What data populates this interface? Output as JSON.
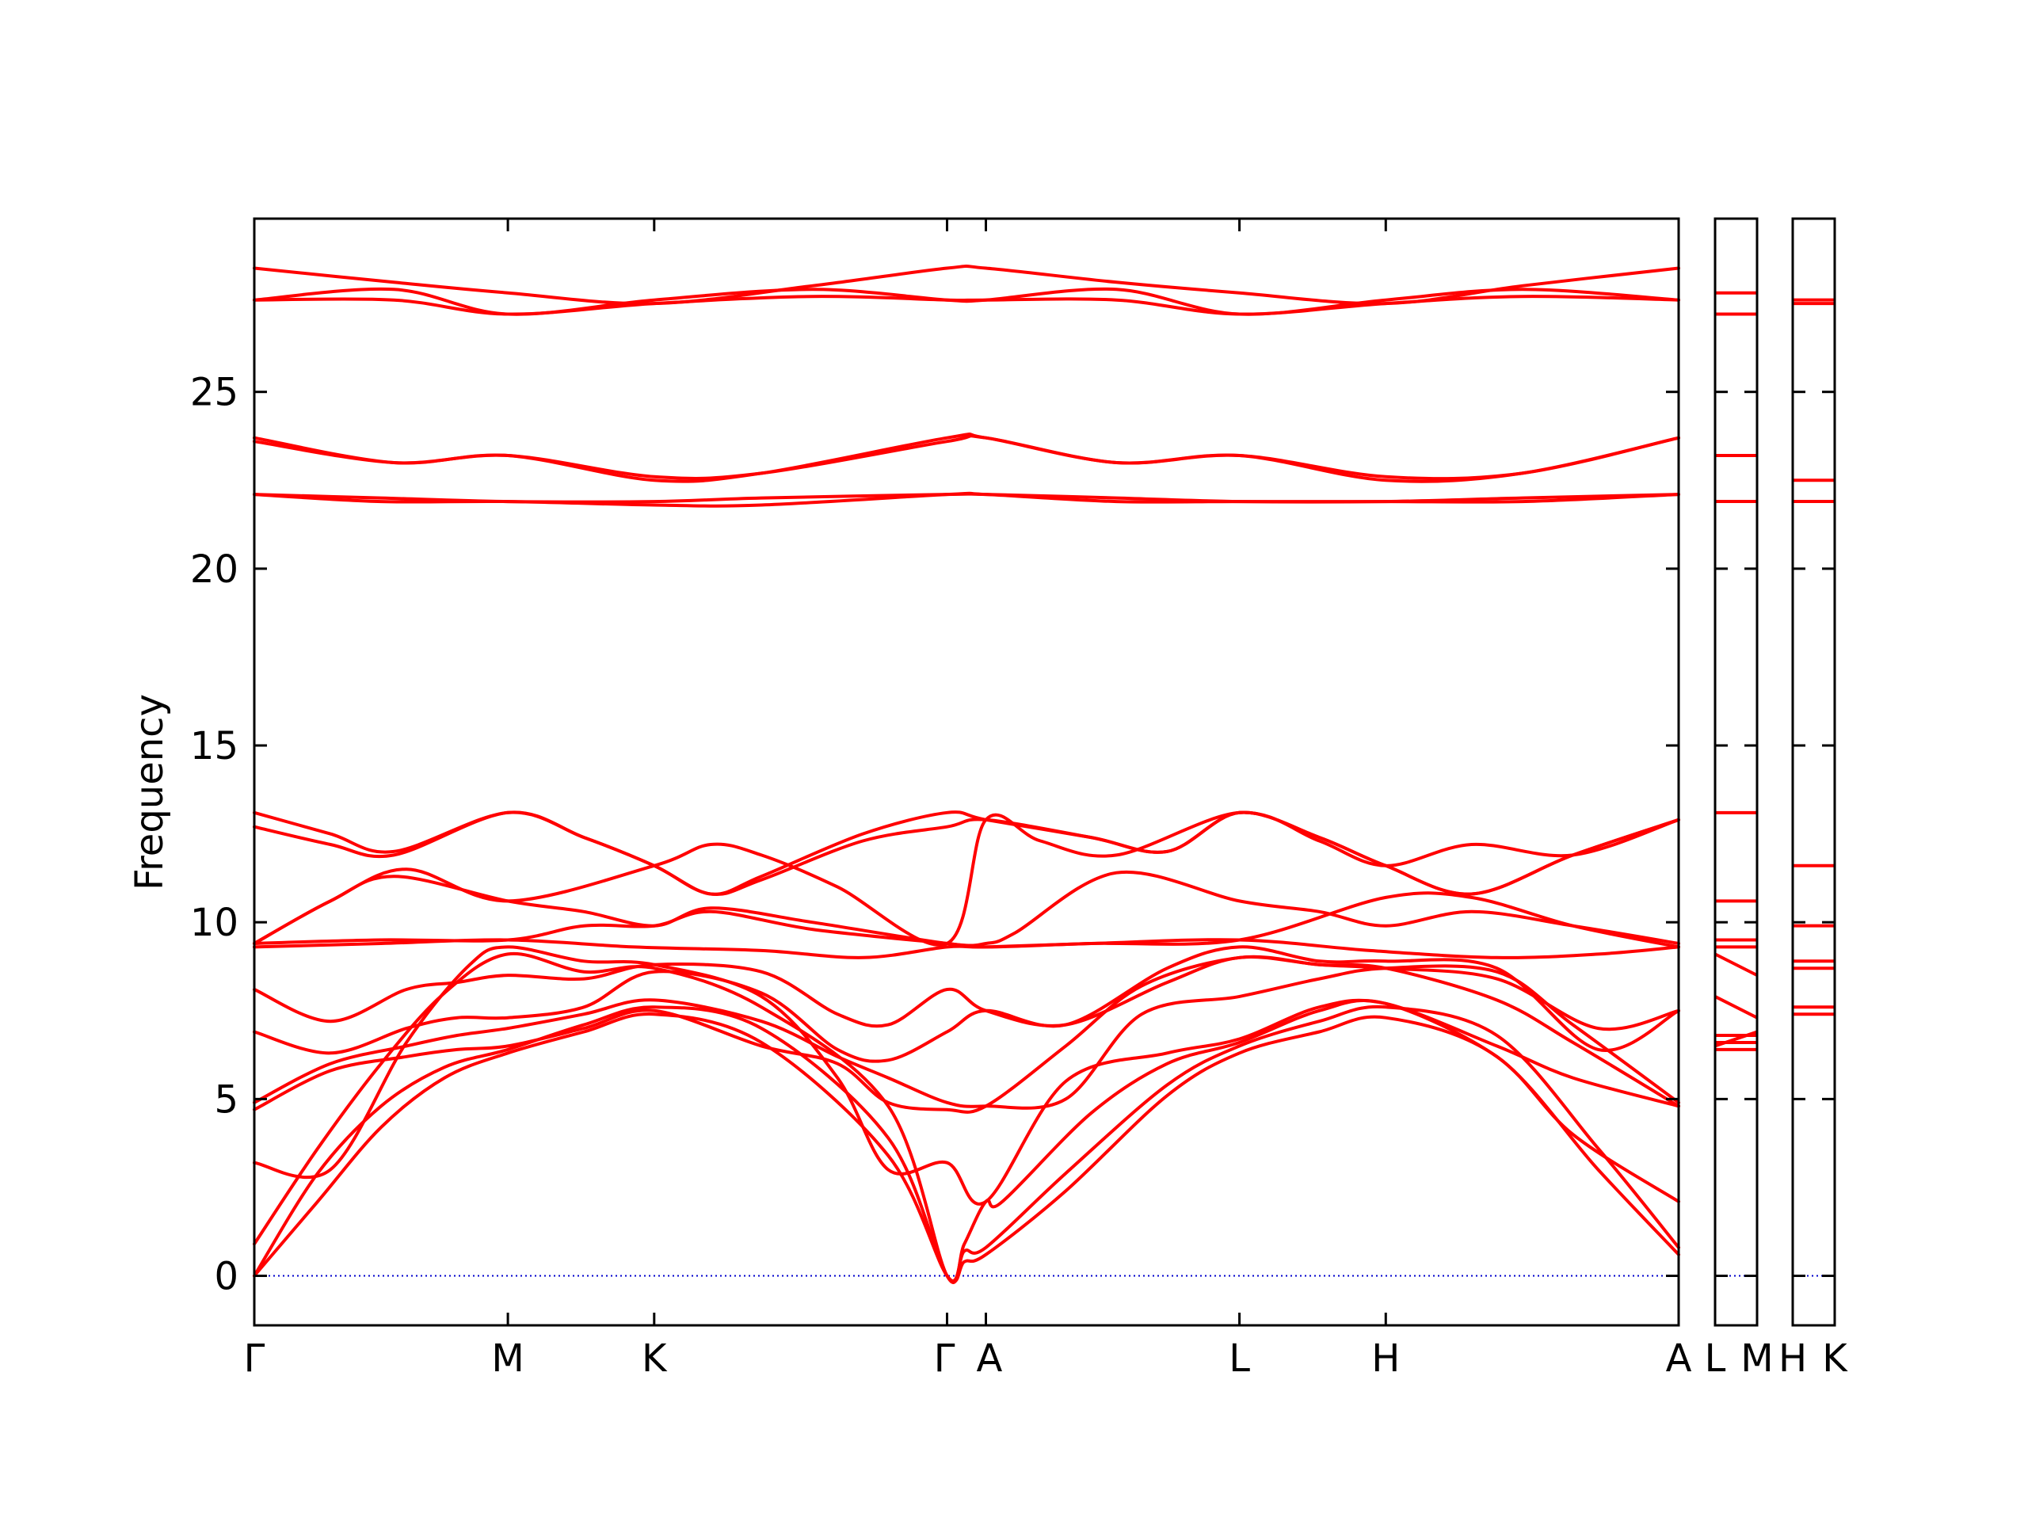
{
  "chart_data": {
    "type": "line",
    "title": "",
    "xlabel": "",
    "ylabel": "Frequency",
    "ylim": [
      -1.4,
      29.9
    ],
    "y_ticks": [
      0,
      5,
      10,
      15,
      20,
      25
    ],
    "grid": false,
    "legend": "none",
    "colors": {
      "bands": "#ff0000",
      "zero_line": "#0000cc",
      "axes": "#000000"
    },
    "zero_line": {
      "y": 0,
      "style": "dotted"
    },
    "panels": [
      {
        "path_labels": [
          "Γ",
          "M",
          "K",
          "Γ",
          "A",
          "L",
          "H",
          "A"
        ],
        "path_distances": [
          0,
          1.0,
          1.577,
          2.732,
          2.885,
          3.885,
          4.462,
          5.617
        ],
        "series": [
          {
            "name": "",
            "x": [
              0,
              0.25,
              0.5,
              0.75,
              1.0,
              1.3,
              1.577,
              2.0,
              2.5,
              2.732,
              2.8,
              2.885,
              3.2,
              3.6,
              3.885,
              4.2,
              4.462,
              4.9,
              5.3,
              5.617
            ],
            "y": [
              0,
              2.1,
              4.2,
              5.6,
              6.3,
              6.9,
              7.4,
              6.6,
              3.4,
              0,
              0.4,
              0.6,
              2.4,
              5.1,
              6.3,
              6.9,
              7.3,
              6.2,
              3.0,
              0.6
            ]
          },
          {
            "name": "",
            "x": [
              0,
              0.25,
              0.5,
              0.75,
              1.0,
              1.3,
              1.577,
              2.0,
              2.5,
              2.732,
              2.8,
              2.885,
              3.2,
              3.6,
              3.885,
              4.2,
              4.462,
              4.9,
              5.3,
              5.617
            ],
            "y": [
              0,
              2.9,
              4.8,
              5.9,
              6.4,
              7.1,
              7.6,
              7.0,
              3.9,
              0,
              0.7,
              0.8,
              2.9,
              5.4,
              6.5,
              7.2,
              7.6,
              6.8,
              3.6,
              0.8
            ]
          },
          {
            "name": "",
            "x": [
              0,
              0.25,
              0.5,
              0.75,
              1.0,
              1.3,
              1.577,
              2.0,
              2.5,
              2.732,
              2.8,
              2.885,
              2.95,
              3.3,
              3.6,
              3.885,
              4.2,
              4.462,
              4.9,
              5.2,
              5.617
            ],
            "y": [
              0.9,
              3.6,
              6.0,
              8.0,
              9.1,
              8.6,
              8.7,
              7.6,
              4.8,
              0,
              0.9,
              2.1,
              2.1,
              4.6,
              6.0,
              6.6,
              7.5,
              7.7,
              6.2,
              4.0,
              2.1
            ]
          },
          {
            "name": "",
            "x": [
              0,
              0.3,
              0.6,
              0.85,
              1.0,
              1.3,
              1.577,
              2.0,
              2.3,
              2.5,
              2.732,
              2.885,
              3.2,
              3.6,
              3.885,
              4.2,
              4.462,
              4.9,
              5.2,
              5.617
            ],
            "y": [
              3.2,
              3.0,
              6.6,
              8.8,
              9.3,
              8.9,
              8.8,
              7.9,
              5.6,
              3.0,
              3.2,
              2.1,
              5.5,
              6.3,
              6.7,
              7.6,
              7.7,
              6.5,
              5.6,
              4.8
            ]
          },
          {
            "name": "",
            "x": [
              0,
              0.3,
              0.6,
              0.8,
              1.0,
              1.3,
              1.577,
              2.0,
              2.3,
              2.5,
              2.732,
              2.885,
              3.2,
              3.5,
              3.885,
              4.2,
              4.462,
              4.9,
              5.2,
              5.617
            ],
            "y": [
              4.7,
              5.8,
              6.2,
              6.4,
              6.5,
              7.0,
              7.5,
              6.5,
              6.0,
              4.9,
              4.7,
              4.8,
              6.5,
              8.2,
              9.0,
              8.8,
              8.7,
              7.8,
              6.6,
              4.8
            ]
          },
          {
            "name": "",
            "x": [
              0,
              0.3,
              0.6,
              0.8,
              1.0,
              1.3,
              1.577,
              2.0,
              2.3,
              2.5,
              2.732,
              2.885,
              3.2,
              3.5,
              3.885,
              4.2,
              4.462,
              4.9,
              5.2,
              5.617
            ],
            "y": [
              4.9,
              6.0,
              6.5,
              6.8,
              7.0,
              7.4,
              7.8,
              7.2,
              6.2,
              5.6,
              4.9,
              4.8,
              5.0,
              7.4,
              7.9,
              8.4,
              8.7,
              8.6,
              7.1,
              4.9
            ]
          },
          {
            "name": "",
            "x": [
              0,
              0.3,
              0.6,
              0.8,
              1.0,
              1.3,
              1.577,
              2.0,
              2.3,
              2.5,
              2.732,
              2.885,
              3.2,
              3.6,
              3.885,
              4.2,
              4.462,
              4.9,
              5.3,
              5.617
            ],
            "y": [
              6.9,
              6.3,
              7.0,
              7.3,
              7.3,
              7.6,
              8.6,
              8.0,
              6.4,
              6.1,
              6.9,
              7.5,
              7.1,
              8.7,
              9.3,
              8.9,
              8.9,
              8.7,
              6.4,
              7.5
            ]
          },
          {
            "name": "",
            "x": [
              0,
              0.3,
              0.6,
              0.8,
              1.0,
              1.3,
              1.577,
              2.0,
              2.3,
              2.5,
              2.732,
              2.885,
              3.2,
              3.6,
              3.885,
              4.2,
              4.462,
              4.9,
              5.3,
              5.617
            ],
            "y": [
              8.1,
              7.2,
              8.1,
              8.3,
              8.5,
              8.4,
              8.8,
              8.6,
              7.4,
              7.1,
              8.1,
              7.5,
              7.1,
              8.3,
              9.0,
              8.8,
              8.7,
              8.4,
              7.0,
              7.5
            ]
          },
          {
            "name": "",
            "x": [
              0,
              0.5,
              1.0,
              1.5,
              2.0,
              2.4,
              2.732,
              2.885,
              3.3,
              3.885,
              4.4,
              4.9,
              5.3,
              5.617
            ],
            "y": [
              9.3,
              9.4,
              9.5,
              9.3,
              9.2,
              9.0,
              9.3,
              9.3,
              9.4,
              9.5,
              9.2,
              9.0,
              9.1,
              9.3
            ]
          },
          {
            "name": "",
            "x": [
              0,
              0.5,
              1.0,
              1.3,
              1.577,
              1.8,
              2.2,
              2.732,
              2.885,
              3.3,
              3.885,
              4.462,
              4.8,
              5.2,
              5.617
            ],
            "y": [
              9.4,
              9.5,
              9.5,
              9.9,
              9.9,
              10.3,
              9.8,
              9.4,
              9.3,
              9.4,
              9.5,
              10.7,
              10.7,
              9.9,
              9.3
            ]
          },
          {
            "name": "",
            "x": [
              0,
              0.3,
              0.55,
              1.0,
              1.3,
              1.577,
              1.8,
              2.2,
              2.732,
              2.885,
              3.0,
              3.4,
              3.885,
              4.2,
              4.462,
              4.8,
              5.2,
              5.617
            ],
            "y": [
              9.4,
              10.6,
              11.3,
              10.6,
              10.3,
              9.9,
              10.4,
              10.0,
              9.4,
              9.4,
              9.7,
              11.4,
              10.6,
              10.3,
              9.9,
              10.3,
              9.9,
              9.4
            ]
          },
          {
            "name": "",
            "x": [
              0,
              0.3,
              0.6,
              1.0,
              1.577,
              1.8,
              2.0,
              2.3,
              2.732,
              2.885,
              3.1,
              3.4,
              3.885,
              4.2,
              4.462,
              4.8,
              5.2,
              5.617
            ],
            "y": [
              9.4,
              10.6,
              11.5,
              10.6,
              11.6,
              12.2,
              11.9,
              11.0,
              9.4,
              12.9,
              12.3,
              11.9,
              13.1,
              12.3,
              11.6,
              12.2,
              11.9,
              12.9
            ]
          },
          {
            "name": "",
            "x": [
              0,
              0.3,
              0.55,
              1.0,
              1.3,
              1.577,
              1.8,
              2.0,
              2.4,
              2.732,
              2.885,
              3.3,
              3.6,
              3.885,
              4.2,
              4.462,
              4.8,
              5.2,
              5.617
            ],
            "y": [
              12.7,
              12.2,
              11.9,
              13.1,
              12.4,
              11.6,
              10.8,
              11.2,
              12.3,
              12.7,
              12.9,
              12.4,
              12.0,
              13.1,
              12.4,
              11.6,
              10.8,
              11.9,
              12.9
            ]
          },
          {
            "name": "",
            "x": [
              0,
              0.3,
              0.55,
              1.0,
              1.3,
              1.577,
              1.8,
              2.0,
              2.4,
              2.732,
              2.885,
              3.3,
              3.6,
              3.885,
              4.2,
              4.462,
              4.8,
              5.2,
              5.617
            ],
            "y": [
              13.1,
              12.5,
              12.0,
              13.1,
              12.4,
              11.6,
              10.8,
              11.3,
              12.5,
              13.1,
              12.9,
              12.4,
              12.0,
              13.1,
              12.4,
              11.6,
              10.8,
              11.9,
              12.9
            ]
          },
          {
            "name": "",
            "x": [
              0,
              0.5,
              1.0,
              1.577,
              2.0,
              2.732,
              2.885,
              3.4,
              3.885,
              4.462,
              5.0,
              5.617
            ],
            "y": [
              22.1,
              22.0,
              21.9,
              21.9,
              22.0,
              22.1,
              22.1,
              22.0,
              21.9,
              21.9,
              22.0,
              22.1
            ]
          },
          {
            "name": "",
            "x": [
              0,
              0.5,
              1.0,
              1.577,
              2.0,
              2.732,
              2.885,
              3.4,
              3.885,
              4.462,
              5.0,
              5.617
            ],
            "y": [
              22.1,
              21.9,
              21.9,
              21.8,
              21.8,
              22.1,
              22.1,
              21.9,
              21.9,
              21.9,
              21.9,
              22.1
            ]
          },
          {
            "name": "",
            "x": [
              0,
              0.55,
              1.0,
              1.577,
              2.0,
              2.732,
              2.885,
              3.4,
              3.885,
              4.462,
              5.0,
              5.617
            ],
            "y": [
              23.7,
              23.0,
              23.2,
              22.5,
              22.7,
              23.7,
              23.7,
              23.0,
              23.2,
              22.5,
              22.7,
              23.7
            ]
          },
          {
            "name": "",
            "x": [
              0,
              0.55,
              1.0,
              1.577,
              2.0,
              2.732,
              2.885,
              3.4,
              3.885,
              4.462,
              5.0,
              5.617
            ],
            "y": [
              23.6,
              23.0,
              23.2,
              22.6,
              22.7,
              23.6,
              23.7,
              23.0,
              23.2,
              22.6,
              22.7,
              23.7
            ]
          },
          {
            "name": "",
            "x": [
              0,
              0.55,
              1.0,
              1.577,
              2.2,
              2.732,
              2.885,
              3.4,
              3.885,
              4.462,
              5.0,
              5.617
            ],
            "y": [
              27.6,
              27.9,
              27.2,
              27.6,
              27.9,
              27.6,
              27.6,
              27.9,
              27.2,
              27.6,
              27.9,
              27.6
            ]
          },
          {
            "name": "",
            "x": [
              0,
              0.55,
              1.0,
              1.577,
              2.2,
              2.732,
              2.885,
              3.4,
              3.885,
              4.462,
              5.0,
              5.617
            ],
            "y": [
              27.6,
              27.6,
              27.2,
              27.5,
              27.7,
              27.6,
              27.6,
              27.6,
              27.2,
              27.5,
              27.7,
              27.6
            ]
          },
          {
            "name": "",
            "x": [
              0,
              0.55,
              1.0,
              1.577,
              2.2,
              2.732,
              2.885,
              3.4,
              3.885,
              4.462,
              5.0,
              5.617
            ],
            "y": [
              28.5,
              28.1,
              27.8,
              27.5,
              28.0,
              28.5,
              28.5,
              28.1,
              27.8,
              27.5,
              28.0,
              28.5
            ]
          }
        ]
      },
      {
        "path_labels": [
          "L",
          "M"
        ],
        "flat_levels": [
          6.4,
          6.6,
          6.8,
          9.3,
          9.5,
          10.6,
          13.1,
          21.9,
          23.2,
          27.2,
          27.2,
          27.8
        ],
        "diagonal_levels": [
          [
            9.1,
            8.5
          ],
          [
            7.9,
            7.3
          ],
          [
            6.5,
            6.9
          ]
        ]
      },
      {
        "path_labels": [
          "H",
          "K"
        ],
        "flat_levels": [
          7.4,
          7.6,
          8.7,
          8.9,
          9.9,
          11.6,
          21.9,
          22.5,
          27.5,
          27.6
        ]
      }
    ]
  }
}
